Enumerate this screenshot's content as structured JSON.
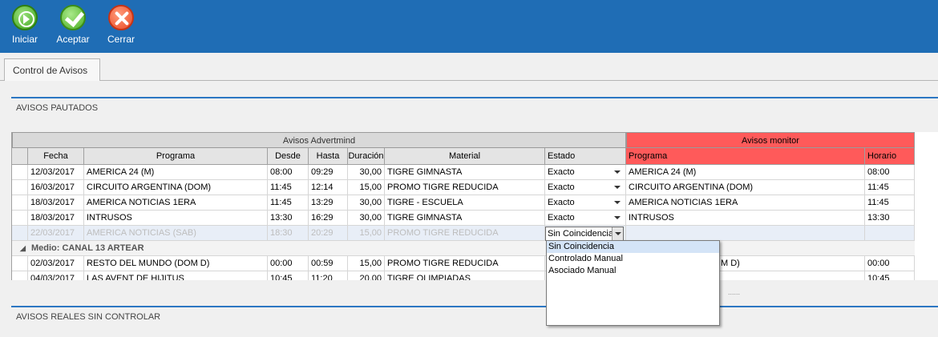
{
  "toolbar": {
    "buttons": [
      {
        "label": "Iniciar",
        "icon": "play-icon"
      },
      {
        "label": "Aceptar",
        "icon": "check-icon"
      },
      {
        "label": "Cerrar",
        "icon": "close-icon"
      }
    ]
  },
  "tabs": [
    {
      "label": "Control de Avisos"
    }
  ],
  "sections": {
    "pautados": "AVISOS PAUTADOS",
    "reales": "AVISOS REALES SIN CONTROLAR"
  },
  "grid": {
    "bands": {
      "advertmind": "Avisos Advertmind",
      "monitor": "Avisos monitor"
    },
    "columns": [
      "Fecha",
      "Programa",
      "Desde",
      "Hasta",
      "Duración",
      "Material",
      "Estado",
      "Programa",
      "Horario"
    ],
    "rows": [
      {
        "fecha": "12/03/2017",
        "programa": "AMERICA 24 (M)",
        "desde": "08:00",
        "hasta": "09:29",
        "duracion": "30,00",
        "material": "TIGRE GIMNASTA",
        "estado": "Exacto",
        "mon_programa": "AMERICA 24 (M)",
        "horario": "08:00"
      },
      {
        "fecha": "16/03/2017",
        "programa": "CIRCUITO ARGENTINA (DOM)",
        "desde": "11:45",
        "hasta": "12:14",
        "duracion": "15,00",
        "material": "PROMO TIGRE REDUCIDA",
        "estado": "Exacto",
        "mon_programa": "CIRCUITO ARGENTINA (DOM)",
        "horario": "11:45"
      },
      {
        "fecha": "18/03/2017",
        "programa": "AMERICA NOTICIAS 1ERA",
        "desde": "11:45",
        "hasta": "13:29",
        "duracion": "30,00",
        "material": "TIGRE - ESCUELA",
        "estado": "Exacto",
        "mon_programa": "AMERICA NOTICIAS 1ERA",
        "horario": "11:45"
      },
      {
        "fecha": "18/03/2017",
        "programa": "INTRUSOS",
        "desde": "13:30",
        "hasta": "16:29",
        "duracion": "30,00",
        "material": "TIGRE GIMNASTA",
        "estado": "Exacto",
        "mon_programa": "INTRUSOS",
        "horario": "13:30"
      },
      {
        "fecha": "22/03/2017",
        "programa": "AMERICA NOTICIAS (SAB)",
        "desde": "18:30",
        "hasta": "20:29",
        "duracion": "15,00",
        "material": "PROMO TIGRE REDUCIDA",
        "estado": "Sin Coincidencia",
        "mon_programa": "",
        "horario": ""
      }
    ],
    "group_label": "Medio: CANAL 13 ARTEAR",
    "group_rows": [
      {
        "fecha": "02/03/2017",
        "programa": "RESTO DEL MUNDO (DOM D)",
        "desde": "00:00",
        "hasta": "00:59",
        "duracion": "15,00",
        "material": "PROMO TIGRE REDUCIDA",
        "estado": "",
        "mon_programa": "M D)",
        "horario": "00:00"
      },
      {
        "fecha": "04/03/2017",
        "programa": "LAS AVENT DE HIJITUS",
        "desde": "10:45",
        "hasta": "11:20",
        "duracion": "20,00",
        "material": "TIGRE OLIMPIADAS",
        "estado": "",
        "mon_programa": "",
        "horario": "10:45"
      }
    ]
  },
  "dropdown": {
    "options": [
      "Sin Coincidencia",
      "Controlado Manual",
      "Asociado Manual"
    ],
    "selected": "Sin Coincidencia"
  },
  "splitter": "......"
}
